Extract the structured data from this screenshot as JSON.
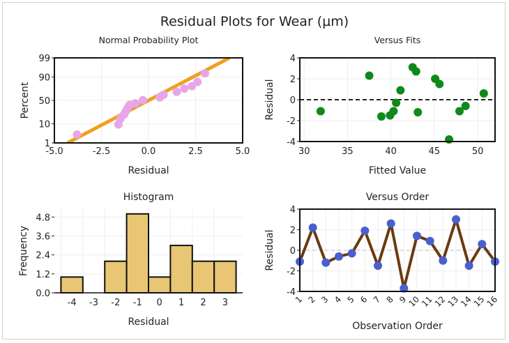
{
  "title": "Residual Plots for Wear (µm)",
  "colors": {
    "normal_points": "#e8a6e8",
    "normal_line": "#f0a020",
    "fits_points": "#0f8a1a",
    "hist_bars": "#e8c674",
    "order_points": "#4a5fd0",
    "order_line": "#6b3a10",
    "grid": "#eeeeee",
    "zero_line": "#222222"
  },
  "chart_data": [
    {
      "id": "normal",
      "type": "scatter",
      "title": "Normal Probability Plot",
      "xlabel": "Residual",
      "ylabel": "Percent",
      "xlim": [
        -5,
        5
      ],
      "xticks": [
        -5,
        -2.5,
        0,
        2.5,
        5
      ],
      "xtick_labels": [
        "-5.0",
        "-2.5",
        "0.0",
        "2.5",
        "5.0"
      ],
      "yticks": [
        1,
        10,
        50,
        90,
        99
      ],
      "ytick_labels": [
        "1",
        "10",
        "50",
        "90",
        "99"
      ],
      "fit_line": {
        "from": [
          -4.3,
          1
        ],
        "to": [
          4.3,
          99
        ]
      },
      "points": [
        {
          "x": -3.8,
          "y": 3.1
        },
        {
          "x": -1.6,
          "y": 9.4
        },
        {
          "x": -1.5,
          "y": 15.6
        },
        {
          "x": -1.3,
          "y": 21.9
        },
        {
          "x": -1.2,
          "y": 28.1
        },
        {
          "x": -1.1,
          "y": 34.4
        },
        {
          "x": -1.0,
          "y": 40.6
        },
        {
          "x": -0.7,
          "y": 43.5
        },
        {
          "x": -0.3,
          "y": 50.5
        },
        {
          "x": 0.6,
          "y": 56.4
        },
        {
          "x": 0.8,
          "y": 62.0
        },
        {
          "x": 1.5,
          "y": 68.0
        },
        {
          "x": 1.9,
          "y": 74.0
        },
        {
          "x": 2.3,
          "y": 78.1
        },
        {
          "x": 2.6,
          "y": 84.4
        },
        {
          "x": 3.0,
          "y": 93.0
        }
      ]
    },
    {
      "id": "fits",
      "type": "scatter",
      "title": "Versus Fits",
      "xlabel": "Fitted Value",
      "ylabel": "Residual",
      "xlim": [
        29.5,
        52
      ],
      "ylim": [
        -4,
        4
      ],
      "xticks": [
        30,
        35,
        40,
        45,
        50
      ],
      "xtick_labels": [
        "30",
        "35",
        "40",
        "45",
        "50"
      ],
      "yticks": [
        -4,
        -2,
        0,
        2,
        4
      ],
      "ytick_labels": [
        "-4",
        "-2",
        "0",
        "2",
        "4"
      ],
      "reference_y": 0,
      "points": [
        {
          "x": 31.9,
          "y": -1.1
        },
        {
          "x": 37.5,
          "y": 2.3
        },
        {
          "x": 38.9,
          "y": -1.6
        },
        {
          "x": 39.9,
          "y": -1.5
        },
        {
          "x": 40.3,
          "y": -1.1
        },
        {
          "x": 40.6,
          "y": -0.3
        },
        {
          "x": 41.1,
          "y": 0.9
        },
        {
          "x": 42.5,
          "y": 3.1
        },
        {
          "x": 42.9,
          "y": 2.7
        },
        {
          "x": 43.1,
          "y": -1.2
        },
        {
          "x": 45.1,
          "y": 2.0
        },
        {
          "x": 45.6,
          "y": 1.5
        },
        {
          "x": 46.7,
          "y": -3.8
        },
        {
          "x": 47.9,
          "y": -1.1
        },
        {
          "x": 48.6,
          "y": -0.6
        },
        {
          "x": 50.7,
          "y": 0.6
        }
      ]
    },
    {
      "id": "hist",
      "type": "bar",
      "title": "Histogram",
      "xlabel": "Residual",
      "ylabel": "Frequency",
      "xlim": [
        -4.8,
        3.8
      ],
      "ylim": [
        0,
        5.3
      ],
      "bin_width": 1,
      "xticks": [
        -4,
        -3,
        -2,
        -1,
        0,
        1,
        2,
        3
      ],
      "xtick_labels": [
        "-4",
        "-3",
        "-2",
        "-1",
        "0",
        "1",
        "2",
        "3"
      ],
      "yticks": [
        0,
        1.2,
        2.4,
        3.6,
        4.8
      ],
      "ytick_labels": [
        "0.0",
        "1.2",
        "2.4",
        "3.6",
        "4.8"
      ],
      "bins": [
        {
          "center": -4,
          "count": 1
        },
        {
          "center": -3,
          "count": 0
        },
        {
          "center": -2,
          "count": 2
        },
        {
          "center": -1,
          "count": 5
        },
        {
          "center": 0,
          "count": 1
        },
        {
          "center": 1,
          "count": 3
        },
        {
          "center": 2,
          "count": 2
        },
        {
          "center": 3,
          "count": 2
        }
      ]
    },
    {
      "id": "order",
      "type": "line",
      "title": "Versus Order",
      "xlabel": "Observation Order",
      "ylabel": "Residual",
      "xlim": [
        1,
        16
      ],
      "ylim": [
        -4,
        4
      ],
      "xticks": [
        1,
        2,
        3,
        4,
        5,
        6,
        7,
        8,
        9,
        10,
        11,
        12,
        13,
        14,
        15,
        16
      ],
      "xtick_labels": [
        "1",
        "2",
        "3",
        "4",
        "5",
        "6",
        "7",
        "8",
        "9",
        "10",
        "11",
        "12",
        "13",
        "14",
        "15",
        "16"
      ],
      "yticks": [
        -4,
        -2,
        0,
        2,
        4
      ],
      "ytick_labels": [
        "-4",
        "-2",
        "0",
        "2",
        "4"
      ],
      "reference_y": 0,
      "x": [
        1,
        2,
        3,
        4,
        5,
        6,
        7,
        8,
        9,
        10,
        11,
        12,
        13,
        14,
        15,
        16
      ],
      "values": [
        -1.1,
        2.2,
        -1.2,
        -0.6,
        -0.3,
        1.9,
        -1.5,
        2.6,
        -3.7,
        1.4,
        0.9,
        -1.0,
        3.0,
        -1.5,
        0.6,
        -1.1
      ]
    }
  ]
}
